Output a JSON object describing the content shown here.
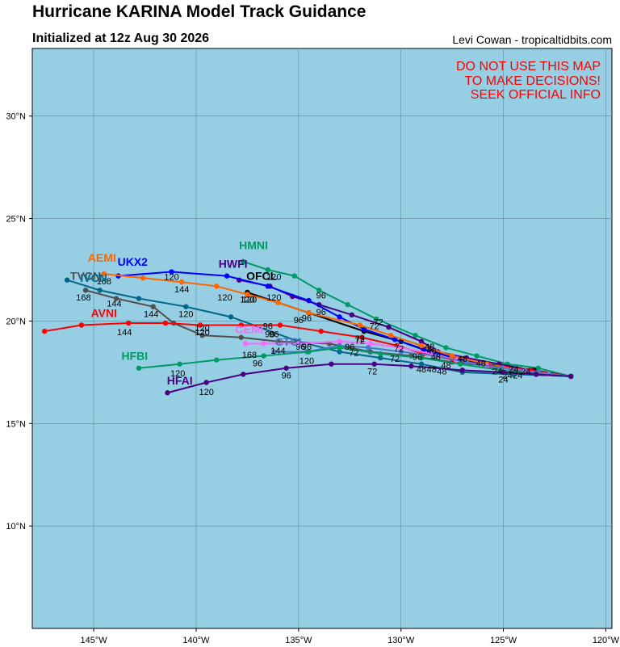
{
  "header": {
    "title": "Hurricane KARINA Model Track Guidance",
    "subtitle": "Initialized at 12z Aug 30 2026",
    "credit": "Levi Cowan - tropicaltidbits.com"
  },
  "warning": [
    "DO NOT USE THIS MAP",
    "TO MAKE DECISIONS!",
    "SEEK OFFICIAL INFO"
  ],
  "colors": {
    "ocean": "#96cee4",
    "grid": "#5f8a99",
    "warning": "#ff0000"
  },
  "map": {
    "lon_range": [
      -148,
      -119.7
    ],
    "lat_range": [
      5,
      33.3
    ],
    "lon_ticks": [
      {
        "v": -145,
        "label": "145°W"
      },
      {
        "v": -140,
        "label": "140°W"
      },
      {
        "v": -135,
        "label": "135°W"
      },
      {
        "v": -130,
        "label": "130°W"
      },
      {
        "v": -125,
        "label": "125°W"
      },
      {
        "v": -120,
        "label": "120°W"
      }
    ],
    "lat_ticks": [
      {
        "v": 10,
        "label": "10°N"
      },
      {
        "v": 15,
        "label": "15°N"
      },
      {
        "v": 20,
        "label": "20°N"
      },
      {
        "v": 25,
        "label": "25°N"
      },
      {
        "v": 30,
        "label": "30°N"
      }
    ]
  },
  "chart_data": {
    "type": "scatter",
    "title": "Hurricane KARINA Model Track Guidance",
    "xlabel": "Longitude",
    "ylabel": "Latitude",
    "xlim": [
      -148,
      -119.7
    ],
    "ylim": [
      5,
      33.3
    ],
    "grid": true,
    "series": [
      {
        "name": "HMNI",
        "color": "#009a66",
        "label_at": [
          -137.2,
          23.5
        ],
        "points": [
          [
            -121.7,
            17.3
          ],
          [
            -123.3,
            17.7
          ],
          [
            -124.8,
            17.9
          ],
          [
            -126.3,
            18.3
          ],
          [
            -127.8,
            18.7
          ],
          [
            -129.3,
            19.3
          ],
          [
            -131.2,
            20.1
          ],
          [
            -132.6,
            20.8
          ],
          [
            -134.0,
            21.5
          ],
          [
            -135.2,
            22.2
          ],
          [
            -136.5,
            22.5
          ],
          [
            -137.7,
            22.9
          ]
        ],
        "labels": []
      },
      {
        "name": "OFCL",
        "color": "#000000",
        "label_at": [
          -136.8,
          22.0
        ],
        "points": [
          [
            -121.7,
            17.3
          ],
          [
            -123.5,
            17.6
          ],
          [
            -125.3,
            17.8
          ],
          [
            -127.0,
            18.1
          ],
          [
            -128.5,
            18.5
          ],
          [
            -130.0,
            19.0
          ],
          [
            -131.8,
            19.5
          ],
          [
            -134.5,
            20.4
          ],
          [
            -137.5,
            21.4
          ]
        ],
        "labels": [
          {
            "t": "72",
            "at": [
              -131.3,
              19.6
            ]
          },
          {
            "t": "96",
            "at": [
              -134.6,
              20.0
            ]
          },
          {
            "t": "120",
            "at": [
              -137.4,
              20.9
            ]
          }
        ]
      },
      {
        "name": "HWFI",
        "color": "#4b0082",
        "label_at": [
          -138.2,
          22.6
        ],
        "points": [
          [
            -121.7,
            17.3
          ],
          [
            -123.6,
            17.6
          ],
          [
            -125.2,
            17.9
          ],
          [
            -126.8,
            18.2
          ],
          [
            -128.2,
            18.5
          ],
          [
            -129.0,
            19.0
          ],
          [
            -130.6,
            19.7
          ],
          [
            -132.4,
            20.3
          ],
          [
            -134.0,
            20.8
          ],
          [
            -135.3,
            21.2
          ],
          [
            -136.4,
            21.7
          ],
          [
            -137.9,
            22.0
          ]
        ],
        "labels": [
          {
            "t": "96",
            "at": [
              -133.9,
              20.3
            ]
          },
          {
            "t": "120",
            "at": [
              -136.2,
              21.0
            ]
          }
        ]
      },
      {
        "name": "UKX2",
        "color": "#0000ff",
        "label_at": [
          -143.1,
          22.7
        ],
        "points": [
          [
            -121.7,
            17.3
          ],
          [
            -124.0,
            17.6
          ],
          [
            -125.8,
            17.9
          ],
          [
            -127.3,
            18.2
          ],
          [
            -128.9,
            18.6
          ],
          [
            -130.3,
            19.1
          ],
          [
            -131.8,
            19.6
          ],
          [
            -133.0,
            20.2
          ],
          [
            -134.5,
            21.0
          ],
          [
            -136.5,
            21.7
          ],
          [
            -138.5,
            22.2
          ],
          [
            -141.2,
            22.4
          ],
          [
            -143.8,
            22.2
          ]
        ],
        "labels": [
          {
            "t": "72",
            "at": [
              -131.1,
              19.8
            ]
          },
          {
            "t": "96",
            "at": [
              -133.9,
              21.1
            ]
          },
          {
            "t": "120",
            "at": [
              -136.2,
              22.0
            ]
          }
        ]
      },
      {
        "name": "AEMI",
        "color": "#ff6600",
        "label_at": [
          -144.6,
          22.9
        ],
        "points": [
          [
            -121.7,
            17.3
          ],
          [
            -124.0,
            17.6
          ],
          [
            -125.8,
            17.9
          ],
          [
            -127.5,
            18.3
          ],
          [
            -129.0,
            18.8
          ],
          [
            -130.5,
            19.3
          ],
          [
            -132.0,
            19.8
          ],
          [
            -134.5,
            20.4
          ],
          [
            -136.0,
            20.9
          ],
          [
            -137.5,
            21.3
          ],
          [
            -139.0,
            21.7
          ],
          [
            -140.7,
            21.9
          ],
          [
            -142.6,
            22.1
          ],
          [
            -144.5,
            22.3
          ]
        ],
        "labels": [
          {
            "t": "120",
            "at": [
              -138.6,
              21.0
            ]
          },
          {
            "t": "144",
            "at": [
              -140.7,
              21.4
            ]
          },
          {
            "t": "120",
            "at": [
              -141.2,
              22.0
            ]
          },
          {
            "t": "168",
            "at": [
              -144.5,
              21.8
            ]
          }
        ]
      },
      {
        "name": "TVCN",
        "color": "#505050",
        "label_at": [
          -145.4,
          22.0
        ],
        "points": [
          [
            -121.7,
            17.3
          ],
          [
            -123.4,
            17.4
          ],
          [
            -125.5,
            17.8
          ],
          [
            -127.5,
            18.0
          ],
          [
            -129.5,
            18.3
          ],
          [
            -131.5,
            18.5
          ],
          [
            -133.5,
            18.9
          ],
          [
            -136.0,
            19.0
          ],
          [
            -137.8,
            19.2
          ],
          [
            -139.7,
            19.3
          ],
          [
            -141.1,
            19.9
          ],
          [
            -142.1,
            20.7
          ],
          [
            -143.9,
            21.1
          ],
          [
            -145.4,
            21.5
          ]
        ],
        "labels": [
          {
            "t": "72",
            "at": [
              -132.0,
              18.9
            ]
          },
          {
            "t": "96",
            "at": [
              -136.2,
              19.2
            ]
          },
          {
            "t": "120",
            "at": [
              -139.7,
              19.5
            ]
          },
          {
            "t": "144",
            "at": [
              -142.2,
              20.2
            ]
          },
          {
            "t": "144",
            "at": [
              -144.0,
              20.7
            ]
          }
        ]
      },
      {
        "name": "IVCN",
        "color": "#00688b",
        "label_at": [
          -145.0,
          21.9
        ],
        "points": [
          [
            -121.7,
            17.3
          ],
          [
            -124.5,
            17.4
          ],
          [
            -127.0,
            17.5
          ],
          [
            -129.0,
            17.9
          ],
          [
            -131.0,
            18.2
          ],
          [
            -133.0,
            18.5
          ],
          [
            -135.0,
            19.0
          ],
          [
            -138.3,
            20.2
          ],
          [
            -140.5,
            20.7
          ],
          [
            -142.8,
            21.1
          ],
          [
            -144.7,
            21.5
          ],
          [
            -146.3,
            22.0
          ]
        ],
        "labels": [
          {
            "t": "96",
            "at": [
              -134.6,
              18.6
            ]
          },
          {
            "t": "120",
            "at": [
              -140.5,
              20.2
            ]
          },
          {
            "t": "168",
            "at": [
              -145.5,
              21.0
            ]
          }
        ]
      },
      {
        "name": "AVNI",
        "color": "#ff0000",
        "label_at": [
          -144.5,
          20.2
        ],
        "points": [
          [
            -121.7,
            17.3
          ],
          [
            -123.7,
            17.6
          ],
          [
            -125.7,
            17.8
          ],
          [
            -127.4,
            18.1
          ],
          [
            -128.9,
            18.4
          ],
          [
            -130.2,
            18.8
          ],
          [
            -131.9,
            19.2
          ],
          [
            -133.9,
            19.5
          ],
          [
            -135.9,
            19.8
          ],
          [
            -137.8,
            19.8
          ],
          [
            -139.8,
            19.8
          ],
          [
            -141.5,
            19.9
          ],
          [
            -143.3,
            19.9
          ],
          [
            -145.6,
            19.8
          ],
          [
            -147.4,
            19.5
          ]
        ],
        "labels": [
          {
            "t": "72",
            "at": [
              -130.1,
              18.5
            ]
          },
          {
            "t": "96",
            "at": [
              -136.5,
              19.6
            ]
          },
          {
            "t": "120",
            "at": [
              -139.7,
              19.3
            ]
          },
          {
            "t": "144",
            "at": [
              -143.5,
              19.3
            ]
          }
        ]
      },
      {
        "name": "CEMI",
        "color": "#ff66ff",
        "label_at": [
          -137.4,
          19.4
        ],
        "points": [
          [
            -121.7,
            17.3
          ],
          [
            -122.8,
            17.4
          ],
          [
            -124.0,
            17.6
          ],
          [
            -125.8,
            17.8
          ],
          [
            -127.3,
            18.1
          ],
          [
            -128.5,
            18.4
          ],
          [
            -130.0,
            18.7
          ],
          [
            -131.5,
            18.9
          ],
          [
            -133.0,
            19.0
          ],
          [
            -135.0,
            18.9
          ],
          [
            -136.7,
            18.9
          ],
          [
            -137.6,
            18.9
          ]
        ],
        "labels": [
          {
            "t": "96",
            "at": [
              -136.4,
              19.2
            ]
          }
        ]
      },
      {
        "name": "CTCI",
        "color": "#4b79c8",
        "label_at": [
          -135.5,
          18.8
        ],
        "points": [
          [
            -121.7,
            17.3
          ],
          [
            -123.3,
            17.5
          ],
          [
            -125.1,
            17.7
          ],
          [
            -126.8,
            18.0
          ],
          [
            -128.3,
            18.3
          ],
          [
            -130.0,
            18.5
          ],
          [
            -131.6,
            18.7
          ],
          [
            -133.0,
            18.8
          ],
          [
            -134.6,
            18.5
          ],
          [
            -136.2,
            18.5
          ]
        ],
        "labels": [
          {
            "t": "96",
            "at": [
              -134.9,
              18.6
            ]
          },
          {
            "t": "120",
            "at": [
              -134.6,
              17.9
            ]
          },
          {
            "t": "144",
            "at": [
              -136.0,
              18.4
            ]
          },
          {
            "t": "168",
            "at": [
              -137.4,
              18.2
            ]
          }
        ]
      },
      {
        "name": "HFBI",
        "color": "#009a66",
        "label_at": [
          -143.0,
          18.1
        ],
        "points": [
          [
            -121.7,
            17.3
          ],
          [
            -123.4,
            17.4
          ],
          [
            -125.1,
            17.6
          ],
          [
            -127.1,
            17.9
          ],
          [
            -129.0,
            18.2
          ],
          [
            -131.0,
            18.4
          ],
          [
            -133.0,
            18.7
          ],
          [
            -134.5,
            18.5
          ],
          [
            -136.7,
            18.3
          ],
          [
            -139.0,
            18.1
          ],
          [
            -140.8,
            17.9
          ],
          [
            -142.8,
            17.7
          ]
        ],
        "labels": [
          {
            "t": "72",
            "at": [
              -132.3,
              18.3
            ]
          },
          {
            "t": "96",
            "at": [
              -137.0,
              17.8
            ]
          },
          {
            "t": "120",
            "at": [
              -140.9,
              17.3
            ]
          }
        ]
      },
      {
        "name": "HFAI",
        "color": "#4b0082",
        "label_at": [
          -140.8,
          16.9
        ],
        "points": [
          [
            -121.7,
            17.3
          ],
          [
            -123.4,
            17.4
          ],
          [
            -125.0,
            17.5
          ],
          [
            -127.0,
            17.6
          ],
          [
            -129.5,
            17.8
          ],
          [
            -131.3,
            17.9
          ],
          [
            -133.4,
            17.9
          ],
          [
            -135.6,
            17.7
          ],
          [
            -137.7,
            17.4
          ],
          [
            -139.5,
            17.0
          ],
          [
            -141.4,
            16.5
          ]
        ],
        "labels": [
          {
            "t": "72",
            "at": [
              -131.4,
              17.4
            ]
          },
          {
            "t": "96",
            "at": [
              -135.6,
              17.2
            ]
          },
          {
            "t": "120",
            "at": [
              -139.5,
              16.4
            ]
          }
        ]
      }
    ],
    "extra_labels": [
      {
        "t": "24",
        "at": [
          -125.0,
          17.0
        ]
      },
      {
        "t": "24",
        "at": [
          -124.8,
          17.2
        ]
      },
      {
        "t": "24",
        "at": [
          -124.3,
          17.2
        ]
      },
      {
        "t": "24",
        "at": [
          -123.9,
          17.4
        ]
      },
      {
        "t": "24",
        "at": [
          -125.3,
          17.4
        ]
      },
      {
        "t": "24",
        "at": [
          -124.5,
          17.5
        ]
      },
      {
        "t": "48",
        "at": [
          -129.0,
          17.5
        ]
      },
      {
        "t": "48",
        "at": [
          -128.5,
          17.5
        ]
      },
      {
        "t": "48",
        "at": [
          -128.0,
          17.4
        ]
      },
      {
        "t": "48",
        "at": [
          -127.8,
          17.7
        ]
      },
      {
        "t": "48",
        "at": [
          -128.3,
          18.1
        ]
      },
      {
        "t": "48",
        "at": [
          -127.0,
          18.0
        ]
      },
      {
        "t": "48",
        "at": [
          -128.5,
          18.4
        ]
      },
      {
        "t": "48",
        "at": [
          -126.1,
          17.8
        ]
      },
      {
        "t": "48",
        "at": [
          -128.6,
          18.6
        ]
      },
      {
        "t": "72",
        "at": [
          -130.3,
          18.0
        ]
      },
      {
        "t": "72",
        "at": [
          -132.0,
          19.0
        ]
      },
      {
        "t": "96",
        "at": [
          -132.5,
          18.6
        ]
      },
      {
        "t": "96",
        "at": [
          -135.0,
          19.9
        ]
      },
      {
        "t": "120",
        "at": [
          -137.5,
          20.9
        ]
      },
      {
        "t": "96",
        "at": [
          -129.2,
          18.1
        ]
      }
    ]
  }
}
